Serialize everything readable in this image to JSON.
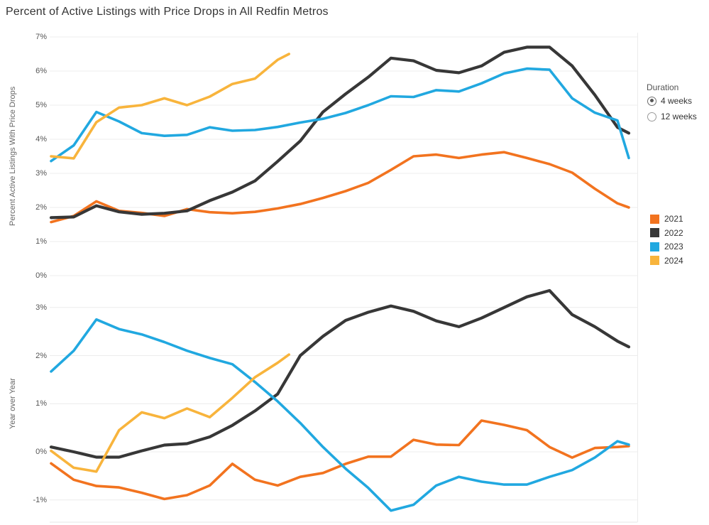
{
  "title": "Percent of Active Listings with Price Drops in  All Redfin Metros",
  "duration_panel": {
    "label": "Duration",
    "options": [
      {
        "label": "4 weeks",
        "selected": true
      },
      {
        "label": "12 weeks",
        "selected": false
      }
    ]
  },
  "legend": {
    "position": "right",
    "items": [
      {
        "label": "2021",
        "color": "#F2731F"
      },
      {
        "label": "2022",
        "color": "#373737"
      },
      {
        "label": "2023",
        "color": "#21A8E0"
      },
      {
        "label": "2024",
        "color": "#F8B43C"
      }
    ]
  },
  "chart_data": [
    {
      "type": "line",
      "title": "Percent of Active Listings with Price Drops in  All Redfin Metros",
      "ylabel": "Percent Active Listings With Price Drops",
      "xlabel": "",
      "x_unit": "week of year",
      "xlim": [
        1,
        52
      ],
      "ylim": [
        0,
        7
      ],
      "grid": true,
      "yticks": [
        {
          "value": 7,
          "label": "7%"
        },
        {
          "value": 6,
          "label": "6%"
        },
        {
          "value": 5,
          "label": "5%"
        },
        {
          "value": 4,
          "label": "4%"
        },
        {
          "value": 3,
          "label": "3%"
        },
        {
          "value": 2,
          "label": "2%"
        },
        {
          "value": 1,
          "label": "1%"
        },
        {
          "value": 0,
          "label": "0%"
        }
      ],
      "series": [
        {
          "name": "2021",
          "color": "#F2731F",
          "x": [
            1,
            3,
            5,
            7,
            9,
            11,
            13,
            15,
            17,
            19,
            21,
            23,
            25,
            27,
            29,
            31,
            33,
            35,
            37,
            39,
            41,
            43,
            45,
            47,
            49,
            51,
            52
          ],
          "y": [
            1.57,
            1.75,
            2.18,
            1.9,
            1.84,
            1.75,
            1.95,
            1.86,
            1.83,
            1.87,
            1.97,
            2.1,
            2.28,
            2.48,
            2.72,
            3.1,
            3.5,
            3.55,
            3.45,
            3.55,
            3.62,
            3.45,
            3.27,
            3.02,
            2.55,
            2.12,
            2.0
          ]
        },
        {
          "name": "2022",
          "color": "#373737",
          "x": [
            1,
            3,
            5,
            7,
            9,
            11,
            13,
            15,
            17,
            19,
            21,
            23,
            25,
            27,
            29,
            31,
            33,
            35,
            37,
            39,
            41,
            43,
            45,
            47,
            49,
            51,
            52
          ],
          "y": [
            1.7,
            1.72,
            2.05,
            1.87,
            1.8,
            1.83,
            1.9,
            2.2,
            2.45,
            2.78,
            3.35,
            3.95,
            4.8,
            5.33,
            5.82,
            6.38,
            6.3,
            6.02,
            5.95,
            6.15,
            6.55,
            6.7,
            6.7,
            6.15,
            5.3,
            4.35,
            4.18
          ]
        },
        {
          "name": "2023",
          "color": "#21A8E0",
          "x": [
            1,
            3,
            5,
            7,
            9,
            11,
            13,
            15,
            17,
            19,
            21,
            23,
            25,
            27,
            29,
            31,
            33,
            35,
            37,
            39,
            41,
            43,
            45,
            47,
            49,
            51,
            52
          ],
          "y": [
            3.36,
            3.82,
            4.8,
            4.52,
            4.18,
            4.1,
            4.13,
            4.35,
            4.25,
            4.27,
            4.36,
            4.49,
            4.6,
            4.77,
            5.0,
            5.26,
            5.24,
            5.44,
            5.4,
            5.64,
            5.93,
            6.07,
            6.04,
            5.2,
            4.78,
            4.55,
            3.45
          ]
        },
        {
          "name": "2024",
          "color": "#F8B43C",
          "x": [
            1,
            3,
            5,
            7,
            9,
            11,
            13,
            15,
            17,
            19,
            21,
            22
          ],
          "y": [
            3.5,
            3.44,
            4.5,
            4.93,
            5.0,
            5.2,
            5.0,
            5.25,
            5.62,
            5.78,
            6.33,
            6.5
          ]
        }
      ]
    },
    {
      "type": "line",
      "title": "",
      "ylabel": "Year over Year",
      "xlabel": "",
      "x_unit": "week of year",
      "xlim": [
        1,
        52
      ],
      "ylim": [
        -1.5,
        3.5
      ],
      "grid": true,
      "yticks": [
        {
          "value": 3,
          "label": "3%"
        },
        {
          "value": 2,
          "label": "2%"
        },
        {
          "value": 1,
          "label": "1%"
        },
        {
          "value": 0,
          "label": "0%"
        },
        {
          "value": -1,
          "label": "-1%"
        }
      ],
      "series": [
        {
          "name": "2021",
          "color": "#F2731F",
          "x": [
            1,
            3,
            5,
            7,
            9,
            11,
            13,
            15,
            17,
            19,
            21,
            23,
            25,
            27,
            29,
            31,
            33,
            35,
            37,
            39,
            41,
            43,
            45,
            47,
            49,
            51,
            52
          ],
          "y": [
            -0.24,
            -0.58,
            -0.71,
            -0.74,
            -0.85,
            -0.98,
            -0.9,
            -0.7,
            -0.25,
            -0.58,
            -0.7,
            -0.52,
            -0.44,
            -0.25,
            -0.1,
            -0.1,
            0.25,
            0.15,
            0.14,
            0.65,
            0.56,
            0.45,
            0.1,
            -0.12,
            0.08,
            0.1,
            0.12
          ]
        },
        {
          "name": "2022",
          "color": "#373737",
          "x": [
            1,
            3,
            5,
            7,
            9,
            11,
            13,
            15,
            17,
            19,
            21,
            23,
            25,
            27,
            29,
            31,
            33,
            35,
            37,
            39,
            41,
            43,
            45,
            47,
            49,
            51,
            52
          ],
          "y": [
            0.1,
            0.0,
            -0.11,
            -0.11,
            0.02,
            0.14,
            0.17,
            0.31,
            0.55,
            0.85,
            1.2,
            2.0,
            2.4,
            2.73,
            2.9,
            3.03,
            2.92,
            2.72,
            2.6,
            2.78,
            3.0,
            3.22,
            3.35,
            2.85,
            2.6,
            2.3,
            2.18
          ]
        },
        {
          "name": "2023",
          "color": "#21A8E0",
          "x": [
            1,
            3,
            5,
            7,
            9,
            11,
            13,
            15,
            17,
            19,
            21,
            23,
            25,
            27,
            29,
            31,
            33,
            35,
            37,
            39,
            41,
            43,
            45,
            47,
            49,
            51,
            52
          ],
          "y": [
            1.67,
            2.1,
            2.75,
            2.55,
            2.44,
            2.28,
            2.1,
            1.95,
            1.82,
            1.45,
            1.05,
            0.6,
            0.1,
            -0.35,
            -0.75,
            -1.22,
            -1.1,
            -0.7,
            -0.52,
            -0.62,
            -0.68,
            -0.68,
            -0.52,
            -0.38,
            -0.12,
            0.22,
            0.15
          ]
        },
        {
          "name": "2024",
          "color": "#F8B43C",
          "x": [
            1,
            3,
            5,
            7,
            9,
            11,
            13,
            15,
            17,
            19,
            21,
            22
          ],
          "y": [
            0.02,
            -0.33,
            -0.41,
            0.45,
            0.82,
            0.7,
            0.9,
            0.72,
            1.12,
            1.55,
            1.85,
            2.02
          ]
        }
      ]
    }
  ]
}
